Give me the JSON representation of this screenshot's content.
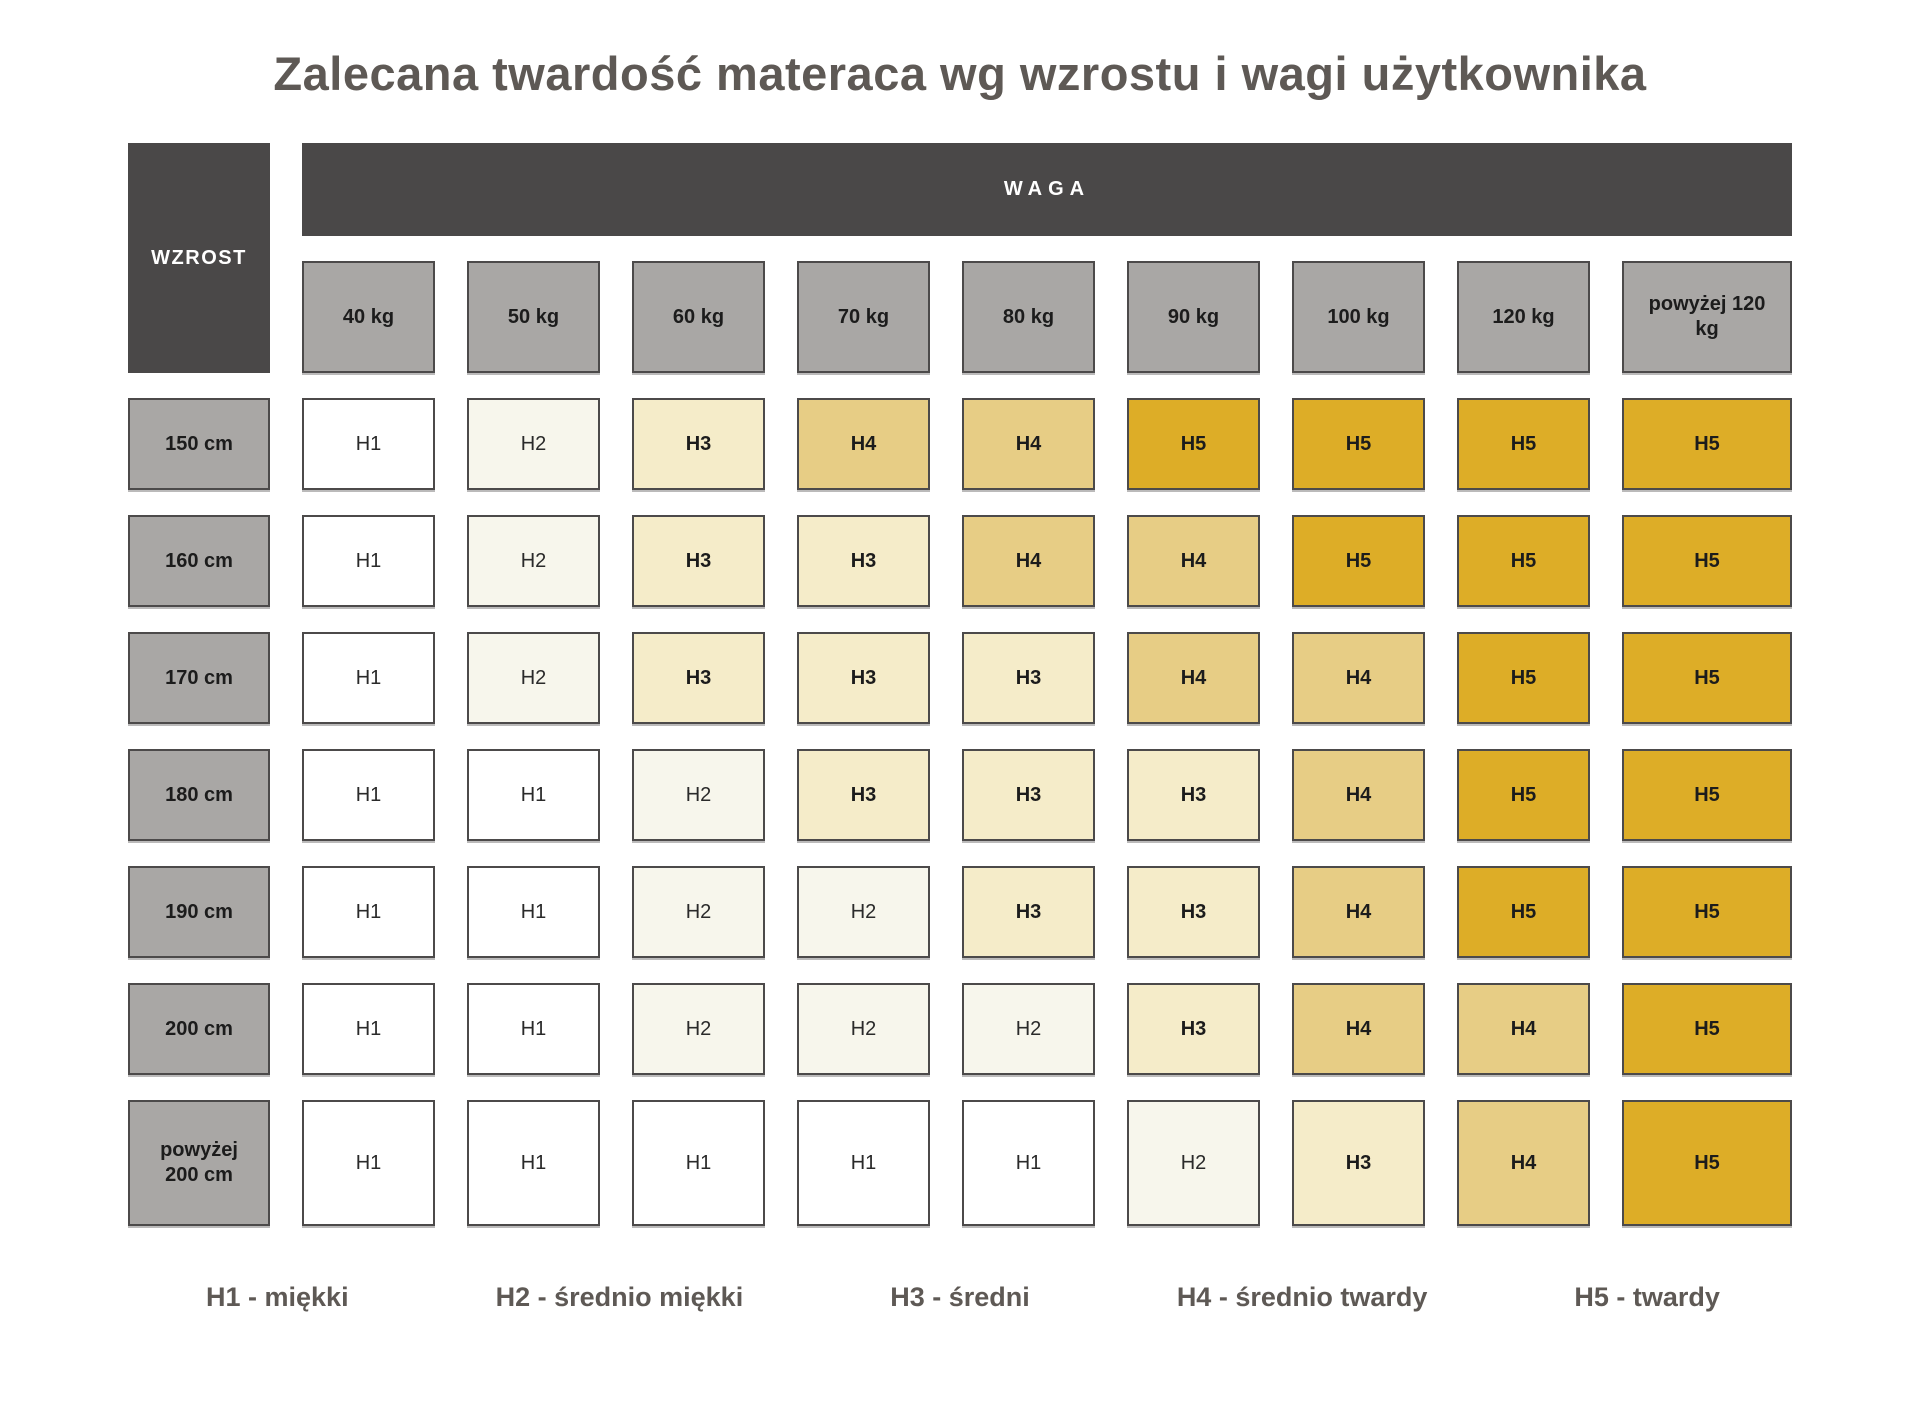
{
  "title": "Zalecana twardość materaca wg wzrostu i wagi użytkownika",
  "chart_data": {
    "type": "heatmap",
    "title": "Zalecana twardość materaca wg wzrostu i wagi użytkownika",
    "x_axis_label": "WAGA",
    "y_axis_label": "WZROST",
    "x_categories": [
      "40 kg",
      "50 kg",
      "60 kg",
      "70 kg",
      "80 kg",
      "90 kg",
      "100 kg",
      "120 kg",
      "powyżej 120 kg"
    ],
    "y_categories": [
      "150 cm",
      "160 cm",
      "170 cm",
      "180 cm",
      "190 cm",
      "200 cm",
      "powyżej 200 cm"
    ],
    "rows": [
      {
        "label": "150 cm",
        "values": [
          "H1",
          "H2",
          "H3",
          "H4",
          "H4",
          "H5",
          "H5",
          "H5",
          "H5"
        ]
      },
      {
        "label": "160 cm",
        "values": [
          "H1",
          "H2",
          "H3",
          "H3",
          "H4",
          "H4",
          "H5",
          "H5",
          "H5"
        ]
      },
      {
        "label": "170 cm",
        "values": [
          "H1",
          "H2",
          "H3",
          "H3",
          "H3",
          "H4",
          "H4",
          "H5",
          "H5"
        ]
      },
      {
        "label": "180 cm",
        "values": [
          "H1",
          "H1",
          "H2",
          "H3",
          "H3",
          "H3",
          "H4",
          "H5",
          "H5"
        ]
      },
      {
        "label": "190 cm",
        "values": [
          "H1",
          "H1",
          "H2",
          "H2",
          "H3",
          "H3",
          "H4",
          "H5",
          "H5"
        ]
      },
      {
        "label": "200 cm",
        "values": [
          "H1",
          "H1",
          "H2",
          "H2",
          "H2",
          "H3",
          "H4",
          "H4",
          "H5"
        ]
      },
      {
        "label": "powyżej 200 cm",
        "values": [
          "H1",
          "H1",
          "H1",
          "H1",
          "H1",
          "H2",
          "H3",
          "H4",
          "H5"
        ]
      }
    ],
    "legend": [
      "H1 - miękki",
      "H2 - średnio miękki",
      "H3 - średni",
      "H4 - średnio twardy",
      "H5 - twardy"
    ]
  },
  "colors": {
    "H1": "#ffffff",
    "H2": "#f7f6ec",
    "H3": "#f5ecc9",
    "H4": "#e7cd85",
    "H5": "#ddad27",
    "header_dark": "#4a4848",
    "header_gray": "#a9a7a5",
    "border": "#4c4a4a",
    "title_text": "#5e5955"
  }
}
